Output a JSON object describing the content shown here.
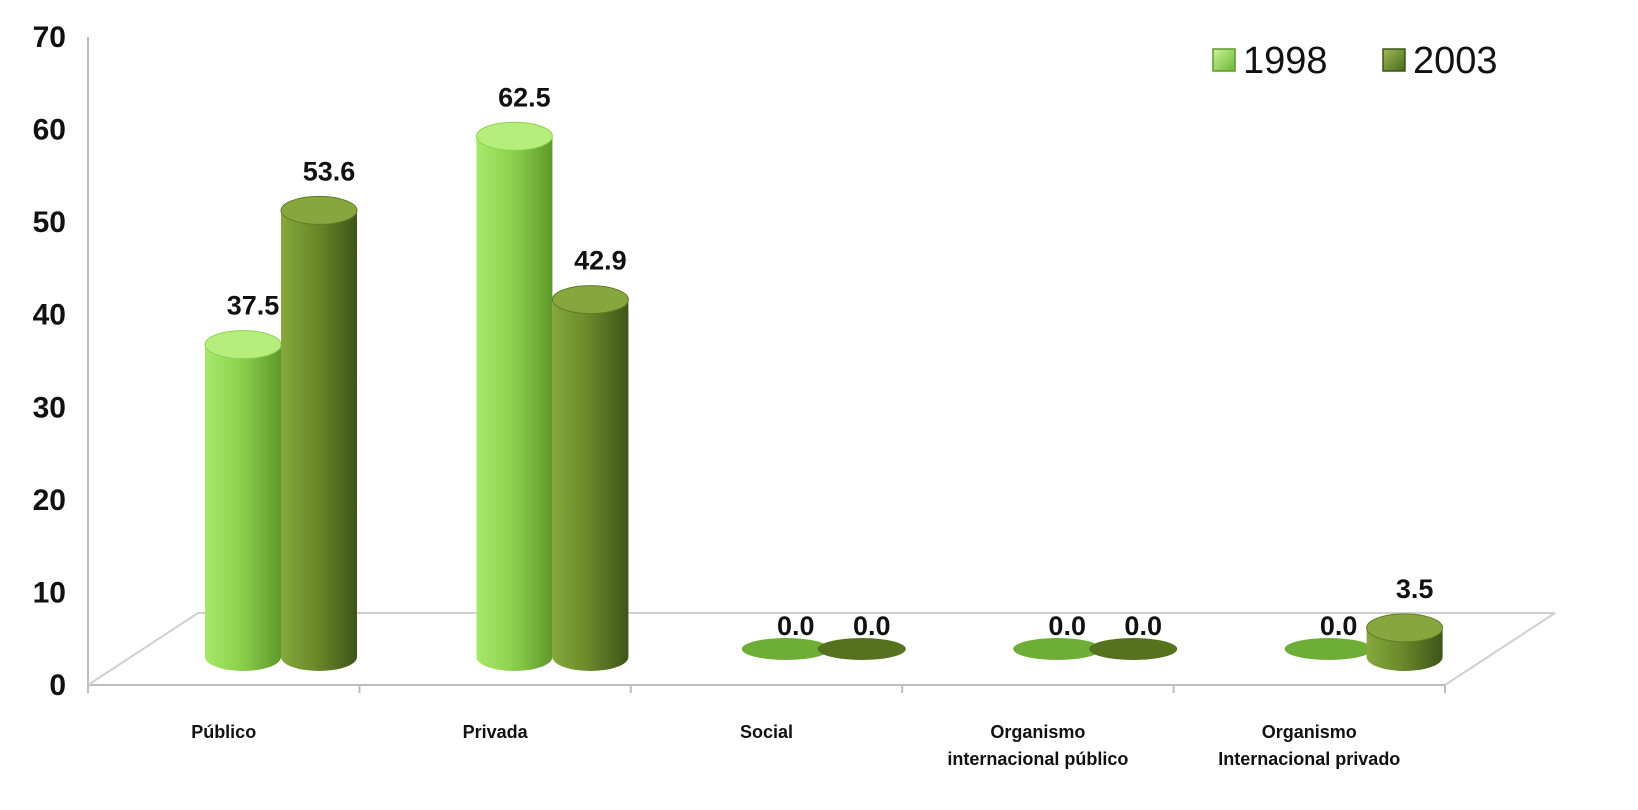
{
  "chart_data": {
    "type": "bar",
    "title": "",
    "xlabel": "",
    "ylabel": "",
    "ylim": [
      0,
      70
    ],
    "yticks": [
      0,
      10,
      20,
      30,
      40,
      50,
      60,
      70
    ],
    "grid": false,
    "legend_position": "top-right",
    "categories": [
      [
        "Público"
      ],
      [
        "Privada"
      ],
      [
        "Social"
      ],
      [
        "Organismo",
        "internacional público"
      ],
      [
        "Organismo",
        "Internacional privado"
      ]
    ],
    "series": [
      {
        "name": "1998",
        "color": "#8fd24e",
        "values": [
          37.5,
          62.5,
          0.0,
          0.0,
          0.0
        ],
        "labels": [
          "37.5",
          "62.5",
          "0.0",
          "0.0",
          "0.0"
        ]
      },
      {
        "name": "2003",
        "color": "#6b8a2a",
        "values": [
          53.6,
          42.9,
          0.0,
          0.0,
          3.5
        ],
        "labels": [
          "53.6",
          "42.9",
          "0.0",
          "0.0",
          "3.5"
        ]
      }
    ]
  }
}
